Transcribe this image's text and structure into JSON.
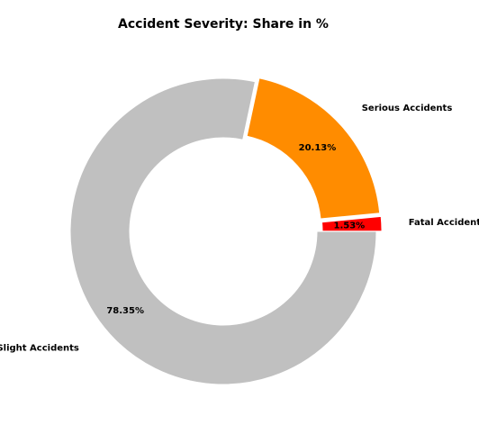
{
  "chart_data": {
    "type": "pie",
    "variant": "donut",
    "title": "Accident Severity: Share in %",
    "slices": [
      {
        "label": "Fatal Accidents",
        "value": 1.53,
        "pct_label": "1.53%",
        "color": "#ff0000",
        "exploded": true
      },
      {
        "label": "Serious Accidents",
        "value": 20.13,
        "pct_label": "20.13%",
        "color": "#ff8c00",
        "exploded": true
      },
      {
        "label": "Slight Accidents",
        "value": 78.35,
        "pct_label": "78.35%",
        "color": "#c0c0c0",
        "exploded": false
      }
    ],
    "start_angle_deg": 0,
    "direction": "counterclockwise",
    "legend": "none"
  }
}
